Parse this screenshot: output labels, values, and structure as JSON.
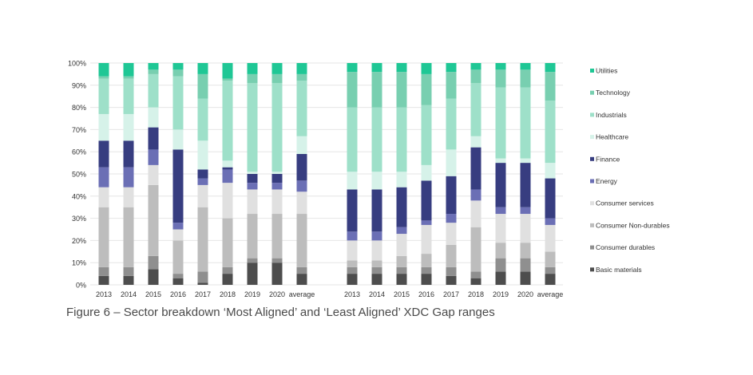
{
  "caption": "Figure 6 – Sector breakdown ‘Most Aligned’ and ‘Least Aligned’ XDC Gap ranges",
  "chart_data": {
    "type": "bar",
    "stacked": true,
    "normalized": true,
    "ylim": [
      0,
      100
    ],
    "y_ticks": [
      "0%",
      "10%",
      "20%",
      "30%",
      "40%",
      "50%",
      "60%",
      "70%",
      "80%",
      "90%",
      "100%"
    ],
    "legend_position": "right",
    "sectors": [
      {
        "name": "Basic materials",
        "color": "#4d4d4d"
      },
      {
        "name": "Consumer durables",
        "color": "#8f8f8f"
      },
      {
        "name": "Consumer Non-durables",
        "color": "#bdbdbd"
      },
      {
        "name": "Consumer services",
        "color": "#e0e0e0"
      },
      {
        "name": "Energy",
        "color": "#6b6fb5"
      },
      {
        "name": "Finance",
        "color": "#373d80"
      },
      {
        "name": "Healthcare",
        "color": "#d6f2e9"
      },
      {
        "name": "Industrials",
        "color": "#9ee0c9"
      },
      {
        "name": "Technology",
        "color": "#78cfb0"
      },
      {
        "name": "Utilities",
        "color": "#1fc795"
      }
    ],
    "groups": [
      {
        "categories": [
          "2013",
          "2014",
          "2015",
          "2016",
          "2017",
          "2018",
          "2019",
          "2020",
          "average"
        ],
        "stacks": [
          [
            4,
            4,
            27,
            9,
            9,
            12,
            12,
            16,
            1,
            6
          ],
          [
            4,
            4,
            27,
            9,
            9,
            12,
            12,
            16,
            1,
            6
          ],
          [
            7,
            6,
            32,
            9,
            7,
            10,
            9,
            15,
            2,
            3
          ],
          [
            3,
            2,
            15,
            5,
            3,
            33,
            9,
            24,
            3,
            3
          ],
          [
            1,
            5,
            29,
            10,
            3,
            4,
            13,
            19,
            11,
            5
          ],
          [
            5,
            3,
            22,
            16,
            6,
            1,
            3,
            36,
            1,
            7
          ],
          [
            10,
            2,
            20,
            11,
            3,
            4,
            1,
            40,
            4,
            5
          ],
          [
            10,
            2,
            20,
            11,
            3,
            4,
            1,
            40,
            4,
            5
          ],
          [
            5,
            3,
            24,
            10,
            5,
            12,
            8,
            25,
            3,
            5
          ]
        ]
      },
      {
        "categories": [
          "2013",
          "2014",
          "2015",
          "2016",
          "2017",
          "2018",
          "2019",
          "2020",
          "average"
        ],
        "stacks": [
          [
            5,
            3,
            3,
            9,
            4,
            19,
            8,
            29,
            16,
            4
          ],
          [
            5,
            3,
            3,
            9,
            4,
            19,
            8,
            29,
            16,
            4
          ],
          [
            5,
            3,
            5,
            10,
            3,
            18,
            7,
            29,
            16,
            4
          ],
          [
            5,
            3,
            6,
            13,
            2,
            18,
            7,
            27,
            14,
            5
          ],
          [
            4,
            4,
            10,
            10,
            4,
            17,
            12,
            23,
            12,
            4
          ],
          [
            3,
            3,
            20,
            12,
            5,
            19,
            5,
            24,
            6,
            3
          ],
          [
            6,
            6,
            7,
            13,
            3,
            20,
            2,
            32,
            8,
            3
          ],
          [
            6,
            6,
            7,
            13,
            3,
            20,
            2,
            32,
            8,
            3
          ],
          [
            5,
            3,
            7,
            12,
            3,
            18,
            7,
            28,
            13,
            4
          ]
        ]
      }
    ]
  }
}
